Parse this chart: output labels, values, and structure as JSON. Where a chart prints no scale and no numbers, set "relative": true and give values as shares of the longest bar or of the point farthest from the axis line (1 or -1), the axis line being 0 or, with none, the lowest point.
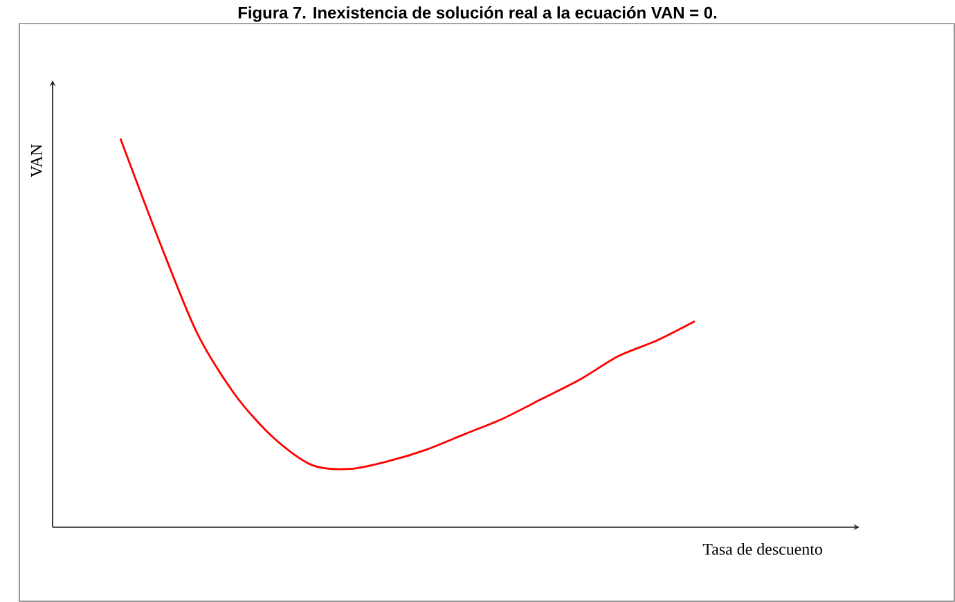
{
  "chart_data": {
    "type": "line",
    "relative": true,
    "title": "Figura 7. Inexistencia de solución real a la ecuación VAN = 0.",
    "xlabel": "Tasa de descuento",
    "ylabel": "VAN",
    "categories": [
      null,
      null,
      null,
      null,
      null,
      null,
      null,
      null,
      null,
      null,
      null,
      null,
      null,
      null,
      null,
      null
    ],
    "series": [
      {
        "color": "#ff0000",
        "values": [
          1.0,
          0.74,
          0.5,
          0.34,
          0.23,
          0.16,
          0.15,
          0.17,
          0.2,
          0.24,
          0.28,
          0.33,
          0.38,
          0.44,
          0.48,
          0.53
        ]
      }
    ]
  }
}
